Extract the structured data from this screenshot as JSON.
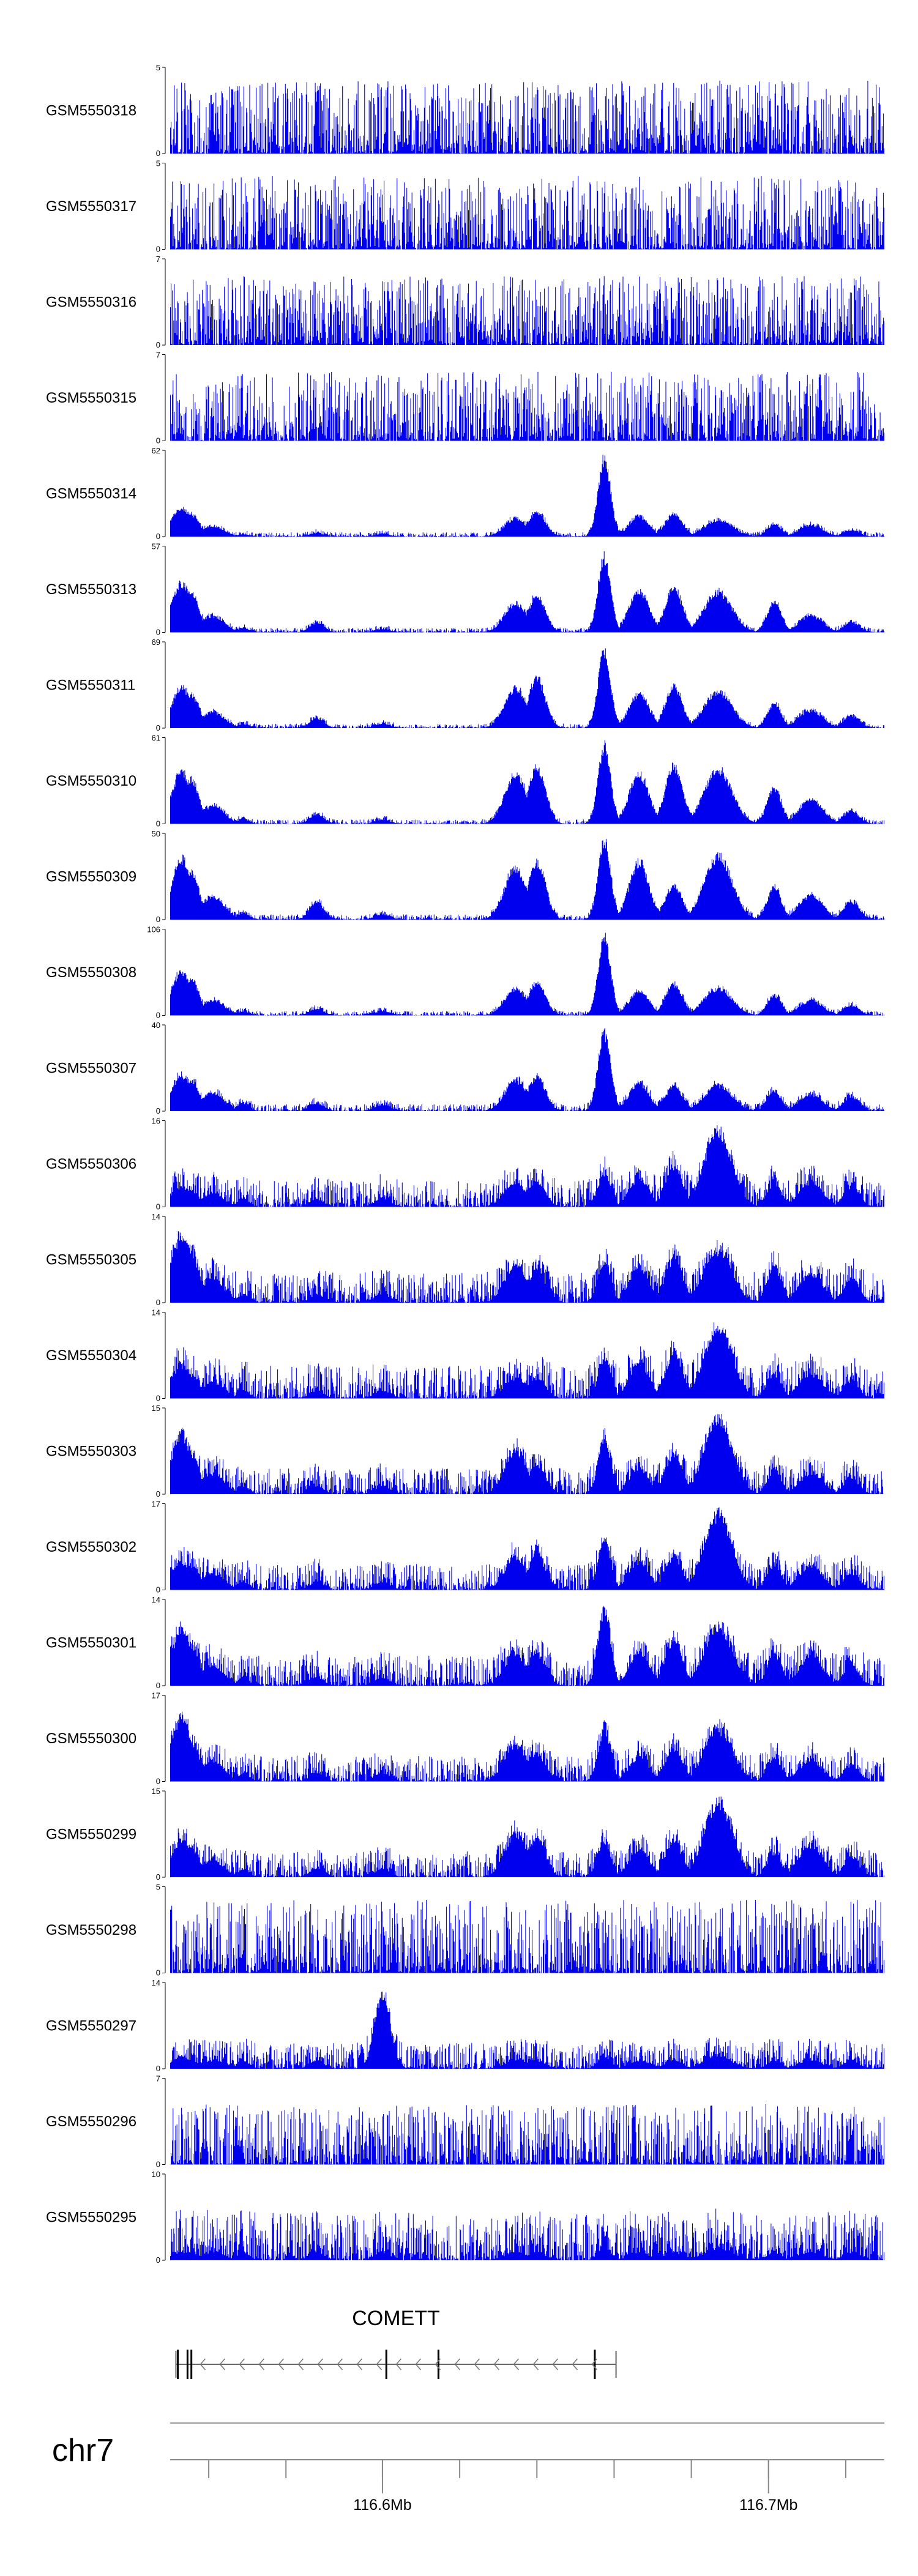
{
  "chart_data": {
    "type": "area",
    "title": "",
    "color": "#0000ee",
    "chromosome": "chr7",
    "xlim": [
      116.545,
      116.73
    ],
    "x_unit": "Mb",
    "x_ticks": [
      {
        "value": 116.6,
        "label": "116.6Mb"
      },
      {
        "value": 116.7,
        "label": "116.7Mb"
      }
    ],
    "minor_ticks": [
      116.555,
      116.575,
      116.6,
      116.62,
      116.64,
      116.66,
      116.68,
      116.7,
      116.72
    ],
    "peaks": [
      {
        "pos": 116.548,
        "width": 0.0025,
        "shape": "sharp"
      },
      {
        "pos": 116.5505,
        "width": 0.002,
        "shape": "sharp"
      },
      {
        "pos": 116.556,
        "width": 0.003,
        "shape": "broad"
      },
      {
        "pos": 116.564,
        "width": 0.0015,
        "shape": "sharp"
      },
      {
        "pos": 116.583,
        "width": 0.0018,
        "shape": "sharp"
      },
      {
        "pos": 116.6,
        "width": 0.002,
        "shape": "sharp"
      },
      {
        "pos": 116.6345,
        "width": 0.0028,
        "shape": "broad"
      },
      {
        "pos": 116.64,
        "width": 0.0022,
        "shape": "sharp"
      },
      {
        "pos": 116.6575,
        "width": 0.0016,
        "shape": "sharp"
      },
      {
        "pos": 116.6665,
        "width": 0.0025,
        "shape": "broad"
      },
      {
        "pos": 116.6755,
        "width": 0.0022,
        "shape": "sharp"
      },
      {
        "pos": 116.687,
        "width": 0.0035,
        "shape": "broad"
      },
      {
        "pos": 116.7015,
        "width": 0.0018,
        "shape": "sharp"
      },
      {
        "pos": 116.711,
        "width": 0.003,
        "shape": "broad"
      },
      {
        "pos": 116.7215,
        "width": 0.002,
        "shape": "sharp"
      }
    ],
    "tracks": [
      {
        "name": "GSM5550318",
        "ymax": 5,
        "noise": 0.85,
        "strengths": [
          0,
          0,
          0,
          0,
          0,
          0,
          0,
          0,
          0,
          0,
          0,
          0,
          0,
          0,
          0
        ]
      },
      {
        "name": "GSM5550317",
        "ymax": 5,
        "noise": 0.85,
        "strengths": [
          0,
          0,
          0,
          0,
          0,
          0,
          0,
          0,
          0,
          0,
          0,
          0,
          0,
          0,
          0
        ]
      },
      {
        "name": "GSM5550316",
        "ymax": 7,
        "noise": 0.8,
        "strengths": [
          0,
          0,
          0,
          0,
          0,
          0,
          0,
          0,
          0,
          0,
          0,
          0,
          0,
          0,
          0
        ]
      },
      {
        "name": "GSM5550315",
        "ymax": 7,
        "noise": 0.8,
        "strengths": [
          0,
          0,
          0,
          0,
          0,
          0,
          0,
          0,
          0,
          0,
          0,
          0,
          0,
          0,
          0
        ]
      },
      {
        "name": "GSM5550314",
        "ymax": 62,
        "noise": 0.05,
        "strengths": [
          0.35,
          0.28,
          0.12,
          0.03,
          0.04,
          0.03,
          0.22,
          0.3,
          0.98,
          0.25,
          0.28,
          0.2,
          0.15,
          0.14,
          0.08
        ]
      },
      {
        "name": "GSM5550313",
        "ymax": 57,
        "noise": 0.05,
        "strengths": [
          0.62,
          0.5,
          0.2,
          0.05,
          0.12,
          0.04,
          0.35,
          0.45,
          0.95,
          0.52,
          0.55,
          0.5,
          0.38,
          0.2,
          0.12
        ]
      },
      {
        "name": "GSM5550311",
        "ymax": 69,
        "noise": 0.05,
        "strengths": [
          0.5,
          0.42,
          0.2,
          0.05,
          0.12,
          0.05,
          0.5,
          0.62,
          0.97,
          0.42,
          0.5,
          0.45,
          0.3,
          0.22,
          0.15
        ]
      },
      {
        "name": "GSM5550310",
        "ymax": 61,
        "noise": 0.05,
        "strengths": [
          0.65,
          0.55,
          0.22,
          0.06,
          0.12,
          0.05,
          0.62,
          0.7,
          0.98,
          0.62,
          0.72,
          0.68,
          0.45,
          0.3,
          0.15
        ]
      },
      {
        "name": "GSM5550309",
        "ymax": 50,
        "noise": 0.06,
        "strengths": [
          0.75,
          0.6,
          0.28,
          0.08,
          0.22,
          0.06,
          0.65,
          0.72,
          0.98,
          0.72,
          0.42,
          0.8,
          0.4,
          0.3,
          0.22
        ]
      },
      {
        "name": "GSM5550308",
        "ymax": 106,
        "noise": 0.05,
        "strengths": [
          0.55,
          0.45,
          0.18,
          0.05,
          0.08,
          0.05,
          0.32,
          0.4,
          0.98,
          0.3,
          0.38,
          0.33,
          0.25,
          0.18,
          0.12
        ]
      },
      {
        "name": "GSM5550307",
        "ymax": 40,
        "noise": 0.08,
        "strengths": [
          0.45,
          0.38,
          0.22,
          0.1,
          0.1,
          0.08,
          0.38,
          0.42,
          0.98,
          0.35,
          0.3,
          0.32,
          0.25,
          0.2,
          0.18
        ]
      },
      {
        "name": "GSM5550306",
        "ymax": 16,
        "noise": 0.32,
        "strengths": [
          0.25,
          0.2,
          0.15,
          0.1,
          0.1,
          0.1,
          0.3,
          0.3,
          0.42,
          0.35,
          0.5,
          0.95,
          0.3,
          0.3,
          0.25
        ]
      },
      {
        "name": "GSM5550305",
        "ymax": 14,
        "noise": 0.35,
        "strengths": [
          0.85,
          0.6,
          0.3,
          0.1,
          0.1,
          0.1,
          0.45,
          0.42,
          0.5,
          0.45,
          0.55,
          0.65,
          0.45,
          0.35,
          0.3
        ]
      },
      {
        "name": "GSM5550304",
        "ymax": 14,
        "noise": 0.38,
        "strengths": [
          0.4,
          0.3,
          0.2,
          0.1,
          0.1,
          0.1,
          0.25,
          0.25,
          0.5,
          0.45,
          0.55,
          0.9,
          0.3,
          0.3,
          0.2
        ]
      },
      {
        "name": "GSM5550303",
        "ymax": 15,
        "noise": 0.3,
        "strengths": [
          0.75,
          0.5,
          0.25,
          0.1,
          0.1,
          0.1,
          0.55,
          0.35,
          0.7,
          0.3,
          0.5,
          0.95,
          0.3,
          0.25,
          0.2
        ]
      },
      {
        "name": "GSM5550302",
        "ymax": 17,
        "noise": 0.3,
        "strengths": [
          0.35,
          0.3,
          0.2,
          0.1,
          0.1,
          0.1,
          0.4,
          0.45,
          0.6,
          0.35,
          0.4,
          0.95,
          0.3,
          0.3,
          0.2
        ]
      },
      {
        "name": "GSM5550301",
        "ymax": 14,
        "noise": 0.35,
        "strengths": [
          0.7,
          0.5,
          0.25,
          0.1,
          0.1,
          0.1,
          0.4,
          0.4,
          0.95,
          0.4,
          0.55,
          0.75,
          0.4,
          0.35,
          0.25
        ]
      },
      {
        "name": "GSM5550300",
        "ymax": 17,
        "noise": 0.3,
        "strengths": [
          0.8,
          0.5,
          0.25,
          0.1,
          0.1,
          0.1,
          0.45,
          0.35,
          0.65,
          0.3,
          0.4,
          0.65,
          0.3,
          0.25,
          0.2
        ]
      },
      {
        "name": "GSM5550299",
        "ymax": 15,
        "noise": 0.3,
        "strengths": [
          0.45,
          0.35,
          0.2,
          0.1,
          0.1,
          0.1,
          0.55,
          0.5,
          0.45,
          0.35,
          0.45,
          0.95,
          0.3,
          0.4,
          0.25
        ]
      },
      {
        "name": "GSM5550298",
        "ymax": 5,
        "noise": 0.85,
        "strengths": [
          0,
          0,
          0,
          0,
          0,
          0,
          0,
          0,
          0,
          0,
          0,
          0,
          0,
          0,
          0
        ]
      },
      {
        "name": "GSM5550297",
        "ymax": 14,
        "noise": 0.3,
        "strengths": [
          0.15,
          0.1,
          0.1,
          0.1,
          0.1,
          0.95,
          0.1,
          0.1,
          0.15,
          0.1,
          0.1,
          0.15,
          0.1,
          0.1,
          0.1
        ]
      },
      {
        "name": "GSM5550296",
        "ymax": 7,
        "noise": 0.7,
        "strengths": [
          0,
          0,
          0,
          0,
          0,
          0,
          0,
          0,
          0,
          0,
          0,
          0,
          0,
          0,
          0
        ]
      },
      {
        "name": "GSM5550295",
        "ymax": 10,
        "noise": 0.55,
        "strengths": [
          0.1,
          0.1,
          0.1,
          0.1,
          0.1,
          0.1,
          0.1,
          0.1,
          0.15,
          0.1,
          0.1,
          0.15,
          0.1,
          0.1,
          0.1
        ]
      }
    ],
    "gene": {
      "name": "COMETT",
      "start": 116.5465,
      "end": 116.6605,
      "strand": "-",
      "exons": [
        116.547,
        116.5495,
        116.5505,
        116.601,
        116.6145,
        116.655
      ]
    }
  }
}
